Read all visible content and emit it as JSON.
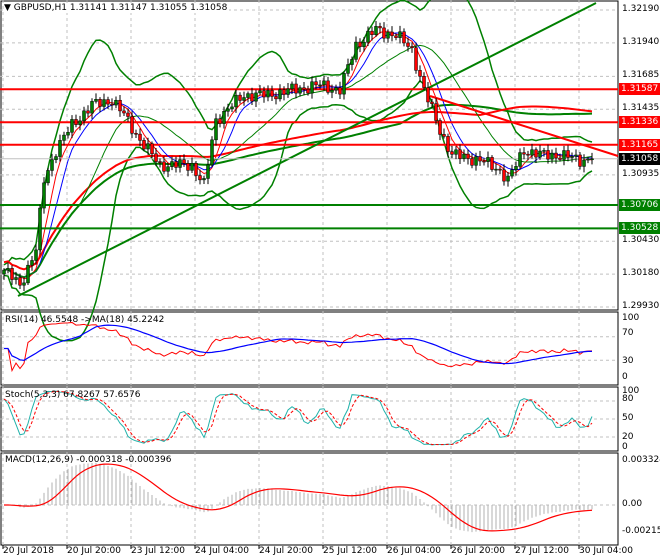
{
  "header": {
    "symbol": "GBPUSD,H1",
    "open": "1.31141",
    "high": "1.31147",
    "low": "1.31055",
    "close": "1.31058"
  },
  "price_axis": [
    "1.32190",
    "1.31940",
    "1.31685",
    "1.31435",
    "1.30935",
    "1.30430",
    "1.30180",
    "1.29930"
  ],
  "levels": [
    {
      "value": "1.31587",
      "color": "#ff0000"
    },
    {
      "value": "1.31336",
      "color": "#ff0000"
    },
    {
      "value": "1.31165",
      "color": "#ff0000"
    },
    {
      "value": "1.30706",
      "color": "#008000"
    },
    {
      "value": "1.30528",
      "color": "#008000"
    }
  ],
  "current_price": "1.31058",
  "rsi": {
    "label": "RSI(14) 46.5548  ->MA(18) 45.2242",
    "axis": [
      "100",
      "70",
      "30",
      "0"
    ]
  },
  "stoch": {
    "label": "Stoch(5,3,3) 67.8267 57.6576",
    "axis": [
      "100",
      "80",
      "50",
      "20",
      "0"
    ]
  },
  "macd": {
    "label": "MACD(12,26,9) -0.000318 -0.000396",
    "axis": [
      "0.003324",
      "0.00",
      "-0.002155"
    ]
  },
  "time_axis": [
    "20 Jul 2018",
    "20 Jul 20:00",
    "23 Jul 12:00",
    "24 Jul 04:00",
    "24 Jul 20:00",
    "25 Jul 12:00",
    "26 Jul 04:00",
    "26 Jul 20:00",
    "27 Jul 12:00",
    "30 Jul 04:00"
  ],
  "chart_data": {
    "type": "candlestick",
    "close_keypoints": [
      1.30211,
      1.30097,
      1.30364,
      1.30896,
      1.31125,
      1.31315,
      1.31467,
      1.31505,
      1.31391,
      1.31201,
      1.3101,
      1.3101,
      1.30858,
      1.31353,
      1.31543,
      1.31543,
      1.31581,
      1.31619,
      1.31581,
      1.31924,
      1.32038,
      1.32,
      1.31886,
      1.31581,
      1.31277,
      1.31087,
      1.31048,
      1.30972,
      1.30896,
      1.31125,
      1.31087,
      1.31087,
      1.31048,
      1.31058
    ],
    "keypoint_bars": [
      0,
      4,
      8,
      10,
      13,
      17,
      22,
      27,
      30,
      34,
      39,
      47,
      50,
      53,
      60,
      66,
      72,
      79,
      84,
      88,
      93,
      98,
      102,
      105,
      109,
      112,
      119,
      124,
      126,
      130,
      134,
      139,
      144,
      147
    ],
    "ylim": [
      1.2993,
      1.3219
    ]
  }
}
